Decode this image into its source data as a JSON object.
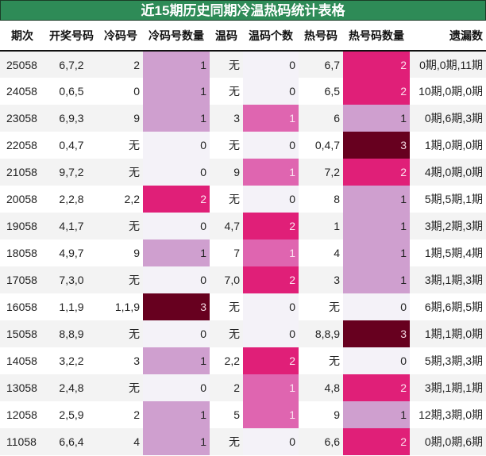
{
  "title": "近15期历史同期冷温热码统计表格",
  "headers": [
    "期次",
    "开奖号码",
    "冷码号",
    "冷码号数量",
    "温码",
    "温码个数",
    "热号码",
    "热号码数量",
    "遗漏数"
  ],
  "colors": {
    "title_bg": "#2e8b57",
    "count_0": "#f4f2f8",
    "cold_warm_1": "#cf9fcf",
    "warm_1": "#df65b0",
    "count_2": "#e01f78",
    "count_3": "#67001f"
  },
  "rows": [
    {
      "period": "25058",
      "numbers": "6,7,2",
      "cold": "2",
      "cold_count": "1",
      "warm": "无",
      "warm_count": "0",
      "hot": "6,7",
      "hot_count": "2",
      "miss": "0期,0期,11期"
    },
    {
      "period": "24058",
      "numbers": "0,6,5",
      "cold": "0",
      "cold_count": "1",
      "warm": "无",
      "warm_count": "0",
      "hot": "6,5",
      "hot_count": "2",
      "miss": "10期,0期,0期"
    },
    {
      "period": "23058",
      "numbers": "6,9,3",
      "cold": "9",
      "cold_count": "1",
      "warm": "3",
      "warm_count": "1",
      "hot": "6",
      "hot_count": "1",
      "miss": "0期,6期,3期"
    },
    {
      "period": "22058",
      "numbers": "0,4,7",
      "cold": "无",
      "cold_count": "0",
      "warm": "无",
      "warm_count": "0",
      "hot": "0,4,7",
      "hot_count": "3",
      "miss": "1期,0期,0期"
    },
    {
      "period": "21058",
      "numbers": "9,7,2",
      "cold": "无",
      "cold_count": "0",
      "warm": "9",
      "warm_count": "1",
      "hot": "7,2",
      "hot_count": "2",
      "miss": "4期,0期,0期"
    },
    {
      "period": "20058",
      "numbers": "2,2,8",
      "cold": "2,2",
      "cold_count": "2",
      "warm": "无",
      "warm_count": "0",
      "hot": "8",
      "hot_count": "1",
      "miss": "5期,5期,1期"
    },
    {
      "period": "19058",
      "numbers": "4,1,7",
      "cold": "无",
      "cold_count": "0",
      "warm": "4,7",
      "warm_count": "2",
      "hot": "1",
      "hot_count": "1",
      "miss": "3期,2期,3期"
    },
    {
      "period": "18058",
      "numbers": "4,9,7",
      "cold": "9",
      "cold_count": "1",
      "warm": "7",
      "warm_count": "1",
      "hot": "4",
      "hot_count": "1",
      "miss": "1期,5期,4期"
    },
    {
      "period": "17058",
      "numbers": "7,3,0",
      "cold": "无",
      "cold_count": "0",
      "warm": "7,0",
      "warm_count": "2",
      "hot": "3",
      "hot_count": "1",
      "miss": "3期,1期,3期"
    },
    {
      "period": "16058",
      "numbers": "1,1,9",
      "cold": "1,1,9",
      "cold_count": "3",
      "warm": "无",
      "warm_count": "0",
      "hot": "无",
      "hot_count": "0",
      "miss": "6期,6期,5期"
    },
    {
      "period": "15058",
      "numbers": "8,8,9",
      "cold": "无",
      "cold_count": "0",
      "warm": "无",
      "warm_count": "0",
      "hot": "8,8,9",
      "hot_count": "3",
      "miss": "1期,1期,0期"
    },
    {
      "period": "14058",
      "numbers": "3,2,2",
      "cold": "3",
      "cold_count": "1",
      "warm": "2,2",
      "warm_count": "2",
      "hot": "无",
      "hot_count": "0",
      "miss": "5期,3期,3期"
    },
    {
      "period": "13058",
      "numbers": "2,4,8",
      "cold": "无",
      "cold_count": "0",
      "warm": "2",
      "warm_count": "1",
      "hot": "4,8",
      "hot_count": "2",
      "miss": "3期,1期,1期"
    },
    {
      "period": "12058",
      "numbers": "2,5,9",
      "cold": "2",
      "cold_count": "1",
      "warm": "5",
      "warm_count": "1",
      "hot": "9",
      "hot_count": "1",
      "miss": "12期,3期,0期"
    },
    {
      "period": "11058",
      "numbers": "6,6,4",
      "cold": "4",
      "cold_count": "1",
      "warm": "无",
      "warm_count": "0",
      "hot": "6,6",
      "hot_count": "2",
      "miss": "0期,0期,6期"
    }
  ]
}
